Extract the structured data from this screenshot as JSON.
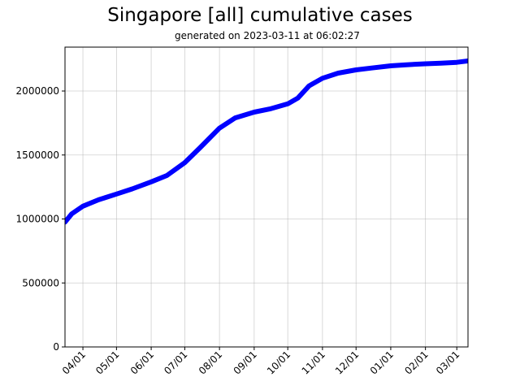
{
  "chart_data": {
    "type": "line",
    "title": "Singapore [all] cumulative cases",
    "subtitle": "generated on 2023-03-11 at 06:02:27",
    "xlabel": "",
    "ylabel": "",
    "grid": true,
    "legend": null,
    "ylim": [
      0,
      2343000
    ],
    "xlim": [
      "2022-03-16",
      "2023-03-11"
    ],
    "y_ticks": [
      0,
      500000,
      1000000,
      1500000,
      2000000
    ],
    "y_tick_labels": [
      "0",
      "500000",
      "1000000",
      "1500000",
      "2000000"
    ],
    "x_ticks": [
      "2022-04-01",
      "2022-05-01",
      "2022-06-01",
      "2022-07-01",
      "2022-08-01",
      "2022-09-01",
      "2022-10-01",
      "2022-11-01",
      "2022-12-01",
      "2023-01-01",
      "2023-02-01",
      "2023-03-01"
    ],
    "x_tick_labels": [
      "04/01",
      "05/01",
      "06/01",
      "07/01",
      "08/01",
      "09/01",
      "10/01",
      "11/01",
      "12/01",
      "01/01",
      "02/01",
      "03/01"
    ],
    "series": [
      {
        "name": "cumulative cases",
        "color": "#0000ff",
        "x": [
          "2022-03-16",
          "2022-03-22",
          "2022-04-01",
          "2022-04-15",
          "2022-05-01",
          "2022-05-15",
          "2022-06-01",
          "2022-06-15",
          "2022-07-01",
          "2022-07-15",
          "2022-08-01",
          "2022-08-15",
          "2022-09-01",
          "2022-09-15",
          "2022-10-01",
          "2022-10-10",
          "2022-10-20",
          "2022-11-01",
          "2022-11-15",
          "2022-12-01",
          "2022-12-15",
          "2023-01-01",
          "2023-01-15",
          "2023-02-01",
          "2023-02-15",
          "2023-03-01",
          "2023-03-11"
        ],
        "values": [
          975000,
          1040000,
          1100000,
          1150000,
          1195000,
          1235000,
          1290000,
          1340000,
          1440000,
          1560000,
          1710000,
          1790000,
          1835000,
          1860000,
          1900000,
          1945000,
          2040000,
          2100000,
          2140000,
          2165000,
          2180000,
          2197000,
          2205000,
          2213000,
          2218000,
          2224000,
          2235000
        ]
      }
    ]
  }
}
